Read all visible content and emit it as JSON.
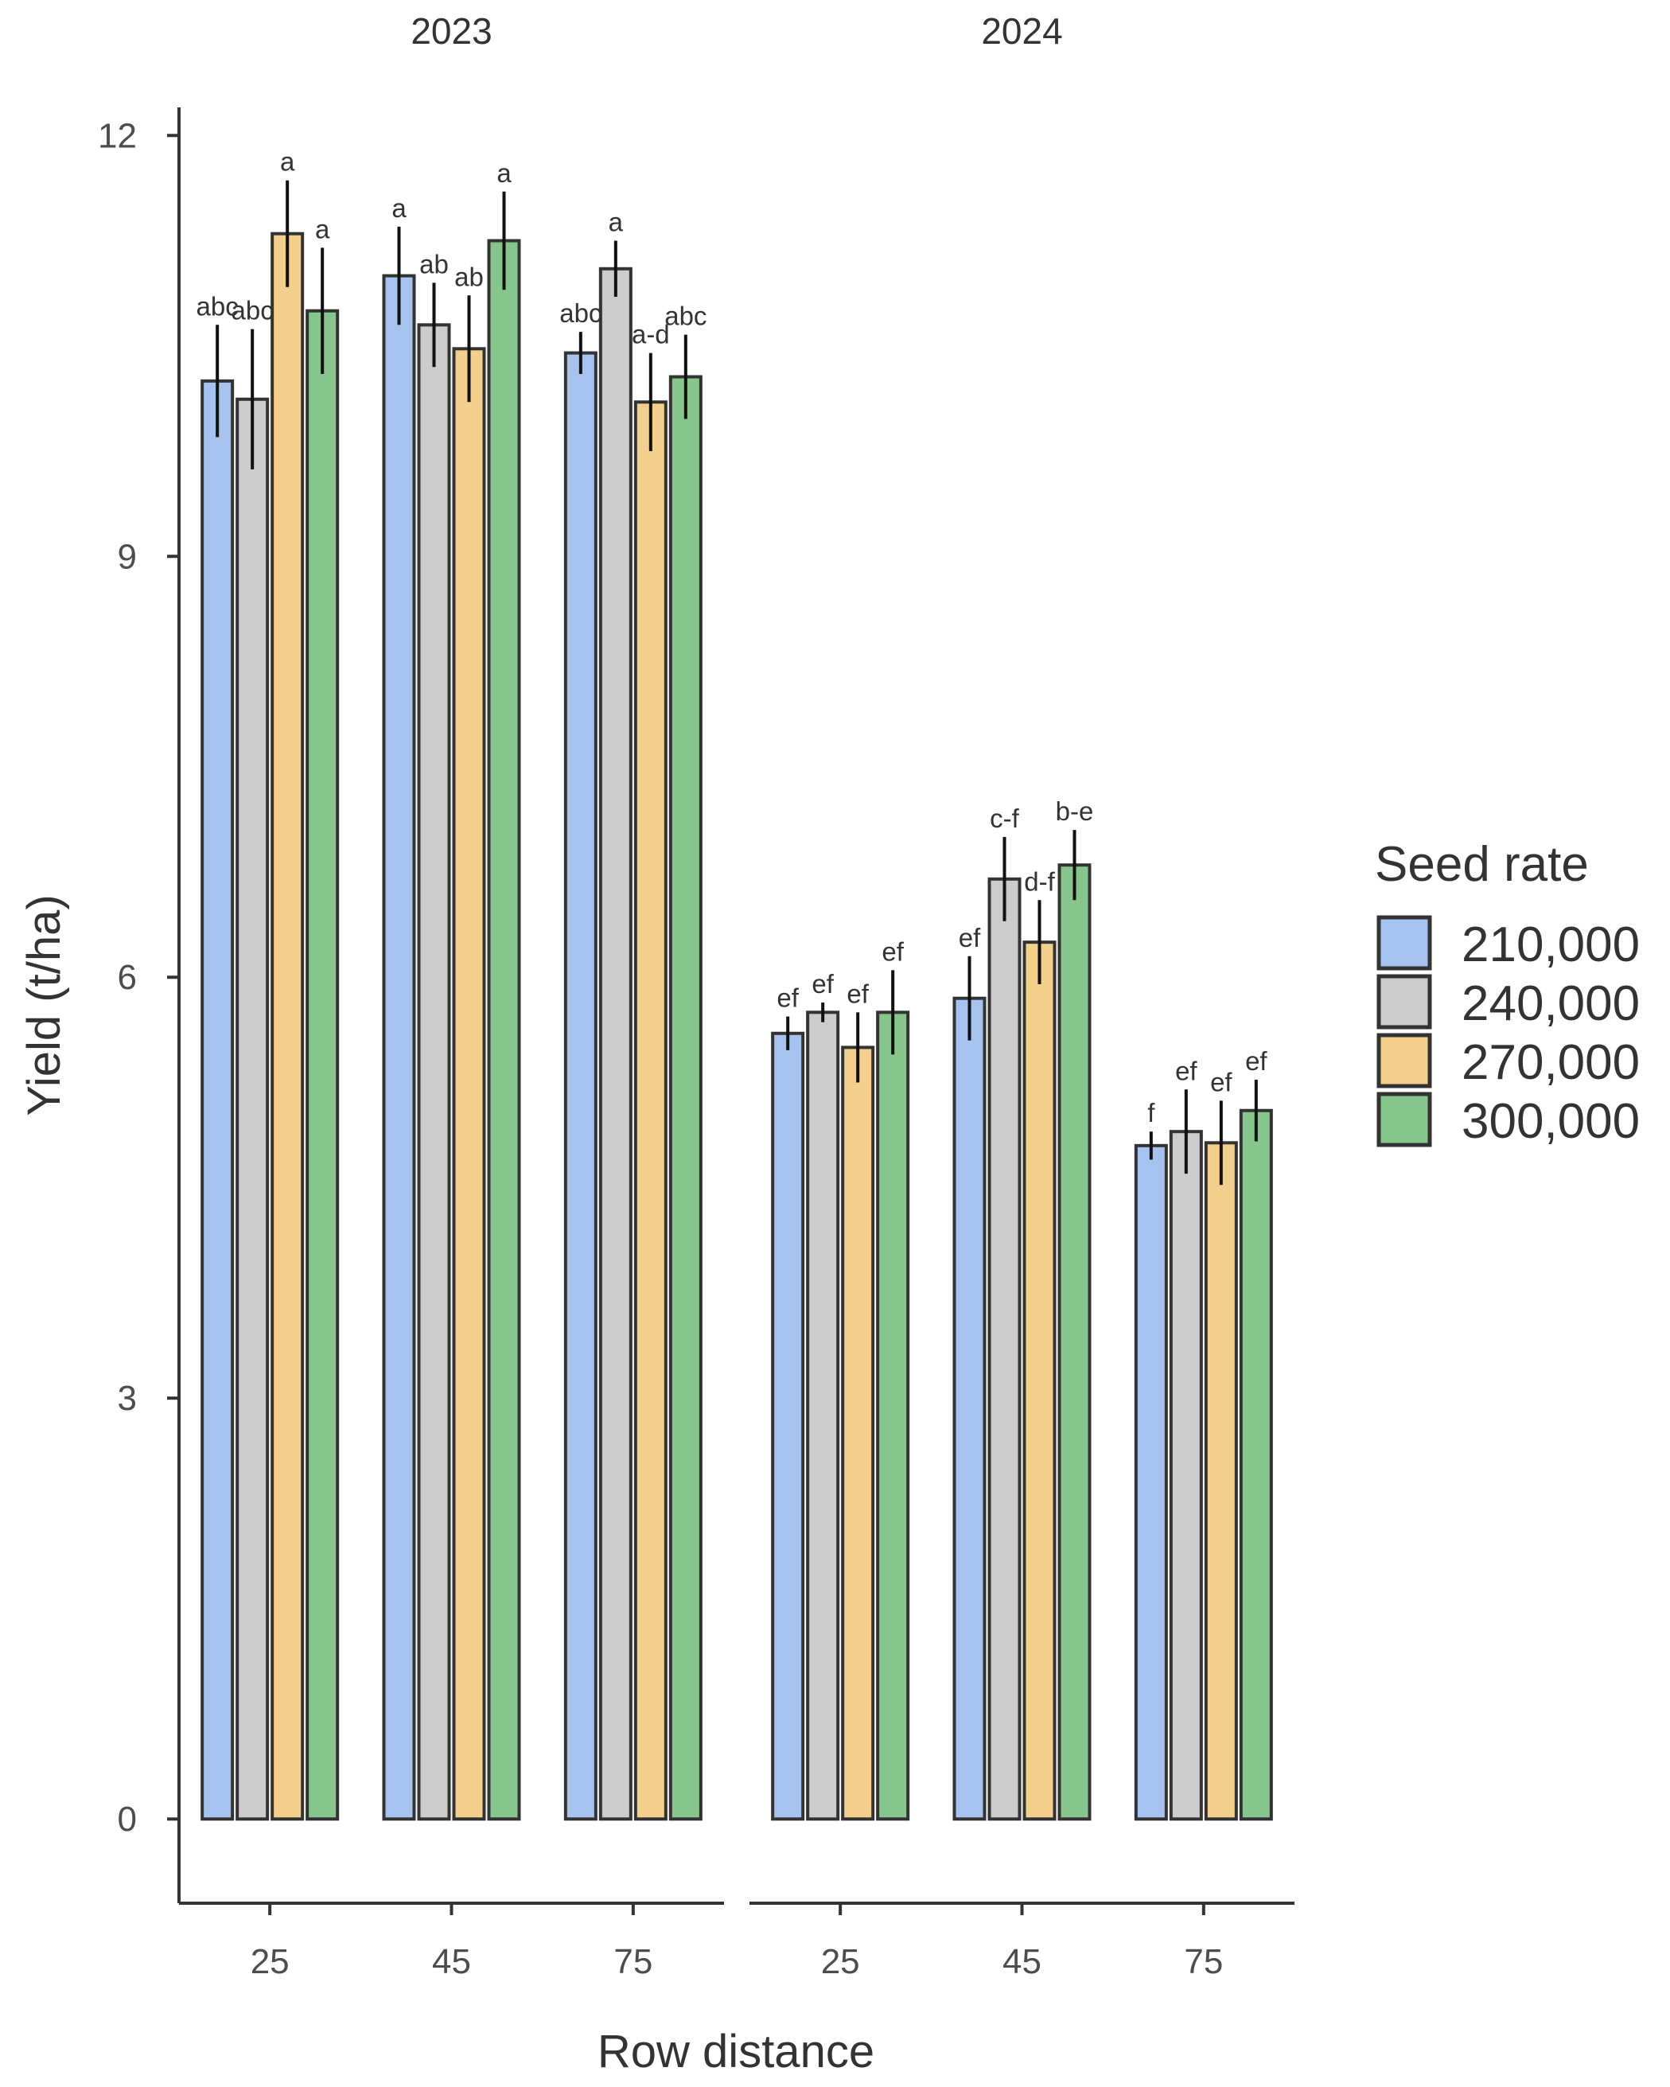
{
  "chart_data": {
    "type": "bar",
    "xlabel": "Row distance",
    "ylabel": "Yield (t/ha)",
    "ylim": [
      -0.6,
      12.2
    ],
    "yticks": [
      0,
      3,
      6,
      9,
      12
    ],
    "grid": false,
    "legend": {
      "title": "Seed rate",
      "position": "right",
      "entries": [
        "210,000",
        "240,000",
        "270,000",
        "300,000"
      ]
    },
    "colors": [
      "#a6c3ef",
      "#cccccc",
      "#f2cf8b",
      "#86c58c"
    ],
    "facets": [
      {
        "title": "2023",
        "categories": [
          "25",
          "45",
          "75"
        ],
        "series": [
          {
            "name": "210,000",
            "values": [
              10.25,
              11.0,
              10.45
            ],
            "errors": [
              0.4,
              0.35,
              0.15
            ],
            "labels": [
              "abc",
              "a",
              "abc"
            ]
          },
          {
            "name": "240,000",
            "values": [
              10.12,
              10.65,
              11.05
            ],
            "errors": [
              0.5,
              0.3,
              0.2
            ],
            "labels": [
              "abc",
              "ab",
              "a"
            ]
          },
          {
            "name": "270,000",
            "values": [
              11.3,
              10.48,
              10.1
            ],
            "errors": [
              0.38,
              0.38,
              0.35
            ],
            "labels": [
              "a",
              "ab",
              "a-d"
            ]
          },
          {
            "name": "300,000",
            "values": [
              10.75,
              11.25,
              10.28
            ],
            "errors": [
              0.45,
              0.35,
              0.3
            ],
            "labels": [
              "a",
              "a",
              "abc"
            ]
          }
        ]
      },
      {
        "title": "2024",
        "categories": [
          "25",
          "45",
          "75"
        ],
        "series": [
          {
            "name": "210,000",
            "values": [
              5.6,
              5.85,
              4.8
            ],
            "errors": [
              0.12,
              0.3,
              0.1
            ],
            "labels": [
              "ef",
              "ef",
              "f"
            ]
          },
          {
            "name": "240,000",
            "values": [
              5.75,
              6.7,
              4.9
            ],
            "errors": [
              0.07,
              0.3,
              0.3
            ],
            "labels": [
              "ef",
              "c-f",
              "ef"
            ]
          },
          {
            "name": "270,000",
            "values": [
              5.5,
              6.25,
              4.82
            ],
            "errors": [
              0.25,
              0.3,
              0.3
            ],
            "labels": [
              "ef",
              "d-f",
              "ef"
            ]
          },
          {
            "name": "300,000",
            "values": [
              5.75,
              6.8,
              5.05
            ],
            "errors": [
              0.3,
              0.25,
              0.22
            ],
            "labels": [
              "ef",
              "b-e",
              "ef"
            ]
          }
        ]
      }
    ]
  }
}
